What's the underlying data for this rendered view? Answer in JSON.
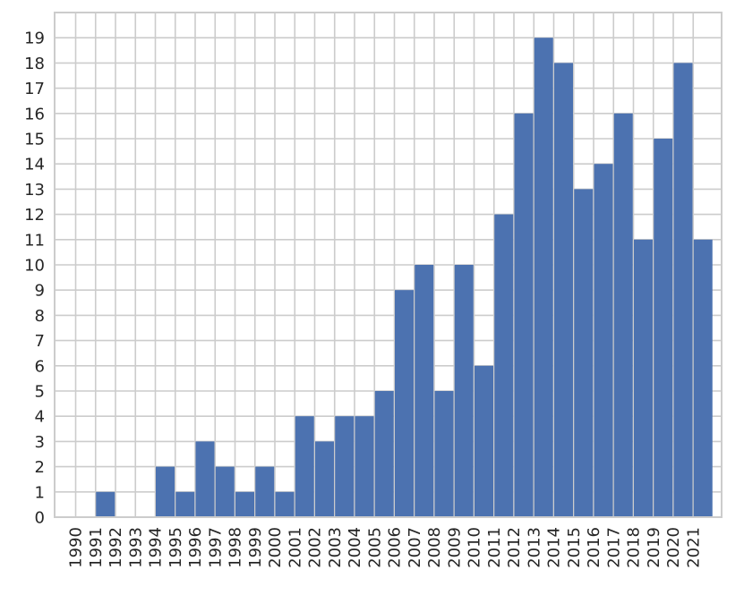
{
  "chart_data": {
    "type": "bar",
    "title": "",
    "xlabel": "",
    "ylabel": "",
    "categories": [
      "1990",
      "1991",
      "1992",
      "1993",
      "1994",
      "1995",
      "1996",
      "1997",
      "1998",
      "1999",
      "2000",
      "2001",
      "2002",
      "2003",
      "2004",
      "2005",
      "2006",
      "2007",
      "2008",
      "2009",
      "2010",
      "2011",
      "2012",
      "2013",
      "2014",
      "2015",
      "2016",
      "2017",
      "2018",
      "2019",
      "2020",
      "2021"
    ],
    "values": [
      0,
      1,
      0,
      0,
      2,
      1,
      3,
      2,
      1,
      2,
      1,
      4,
      3,
      4,
      4,
      5,
      9,
      10,
      5,
      10,
      6,
      12,
      16,
      19,
      18,
      13,
      14,
      16,
      11,
      15,
      18,
      11
    ],
    "yticks": [
      "0",
      "1",
      "2",
      "3",
      "4",
      "5",
      "6",
      "7",
      "8",
      "9",
      "10",
      "11",
      "12",
      "13",
      "14",
      "15",
      "16",
      "17",
      "18",
      "19"
    ],
    "ylim": [
      0,
      20
    ],
    "grid": true,
    "colors": {
      "bar": "#4c72b0",
      "grid": "#cccccc",
      "axes": "#cccccc",
      "text": "#262626"
    }
  }
}
